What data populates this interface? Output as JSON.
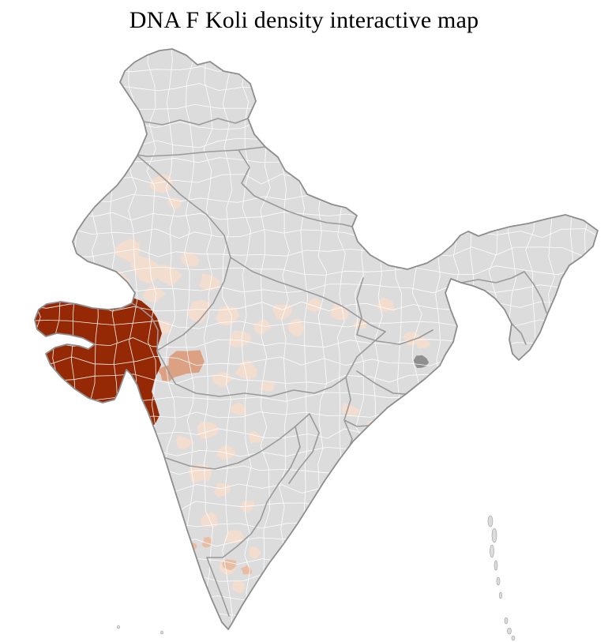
{
  "page": {
    "title": "DNA F Koli density interactive map",
    "background_color": "#ffffff"
  },
  "map": {
    "subject": "india-district-choropleth",
    "colors": {
      "district_base": "#dcdcdc",
      "district_border": "#ffffff",
      "state_border": "#9a9a9a",
      "outline": "#8d8d8d",
      "density_high": "#952905",
      "density_medium": "#dca183",
      "density_low": "#f3ddcf",
      "density_trace": "#e9bda4",
      "no_data": "#8f8f8f",
      "sea": "#ffffff"
    },
    "regions": [
      {
        "name": "gujarat-cluster",
        "density": "high"
      },
      {
        "name": "west-madhya-pradesh-cluster",
        "density": "medium"
      },
      {
        "name": "scattered-districts",
        "density": "low"
      }
    ]
  }
}
